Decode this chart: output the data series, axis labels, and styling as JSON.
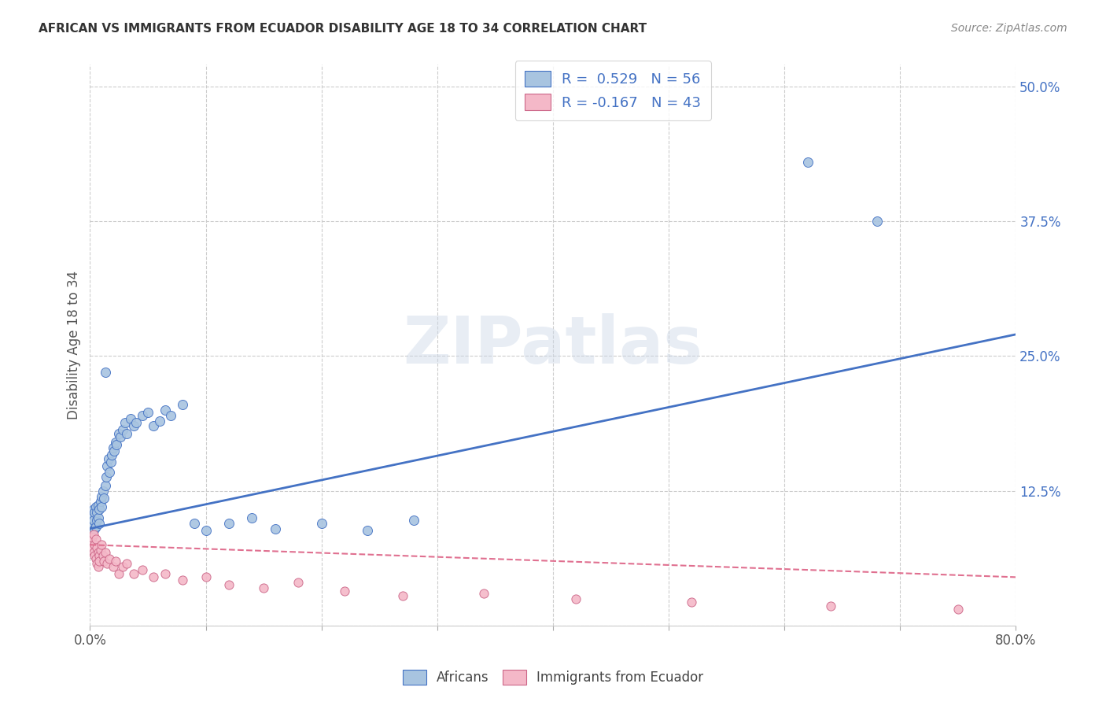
{
  "title": "AFRICAN VS IMMIGRANTS FROM ECUADOR DISABILITY AGE 18 TO 34 CORRELATION CHART",
  "source": "Source: ZipAtlas.com",
  "ylabel": "Disability Age 18 to 34",
  "xlim": [
    0.0,
    0.8
  ],
  "ylim": [
    0.0,
    0.52
  ],
  "xticks": [
    0.0,
    0.1,
    0.2,
    0.3,
    0.4,
    0.5,
    0.6,
    0.7,
    0.8
  ],
  "yticks": [
    0.0,
    0.125,
    0.25,
    0.375,
    0.5
  ],
  "yticklabels": [
    "",
    "12.5%",
    "25.0%",
    "37.5%",
    "50.0%"
  ],
  "blue_color": "#a8c4e0",
  "pink_color": "#f4b8c8",
  "blue_line_color": "#4472c4",
  "pink_line_color": "#e07090",
  "legend_blue_label": "R =  0.529   N = 56",
  "legend_pink_label": "R = -0.167   N = 43",
  "africans_label": "Africans",
  "ecuador_label": "Immigrants from Ecuador",
  "watermark": "ZIPatlas",
  "africans_x": [
    0.001,
    0.002,
    0.003,
    0.003,
    0.004,
    0.004,
    0.005,
    0.005,
    0.006,
    0.006,
    0.007,
    0.007,
    0.008,
    0.008,
    0.009,
    0.01,
    0.01,
    0.011,
    0.012,
    0.013,
    0.013,
    0.014,
    0.015,
    0.016,
    0.017,
    0.018,
    0.019,
    0.02,
    0.021,
    0.022,
    0.023,
    0.025,
    0.026,
    0.028,
    0.03,
    0.032,
    0.035,
    0.038,
    0.04,
    0.045,
    0.05,
    0.055,
    0.06,
    0.065,
    0.07,
    0.08,
    0.09,
    0.1,
    0.12,
    0.14,
    0.16,
    0.2,
    0.24,
    0.28,
    0.62,
    0.68
  ],
  "africans_y": [
    0.095,
    0.1,
    0.098,
    0.108,
    0.09,
    0.105,
    0.092,
    0.11,
    0.098,
    0.105,
    0.1,
    0.112,
    0.095,
    0.108,
    0.115,
    0.11,
    0.12,
    0.125,
    0.118,
    0.13,
    0.235,
    0.138,
    0.148,
    0.155,
    0.142,
    0.152,
    0.158,
    0.165,
    0.162,
    0.17,
    0.168,
    0.178,
    0.175,
    0.182,
    0.188,
    0.178,
    0.192,
    0.185,
    0.188,
    0.195,
    0.198,
    0.185,
    0.19,
    0.2,
    0.195,
    0.205,
    0.095,
    0.088,
    0.095,
    0.1,
    0.09,
    0.095,
    0.088,
    0.098,
    0.43,
    0.375
  ],
  "ecuador_x": [
    0.001,
    0.002,
    0.002,
    0.003,
    0.003,
    0.004,
    0.004,
    0.005,
    0.005,
    0.006,
    0.006,
    0.007,
    0.007,
    0.008,
    0.008,
    0.009,
    0.01,
    0.011,
    0.012,
    0.013,
    0.015,
    0.017,
    0.02,
    0.022,
    0.025,
    0.028,
    0.032,
    0.038,
    0.045,
    0.055,
    0.065,
    0.08,
    0.1,
    0.12,
    0.15,
    0.18,
    0.22,
    0.27,
    0.34,
    0.42,
    0.52,
    0.64,
    0.75
  ],
  "ecuador_y": [
    0.078,
    0.082,
    0.072,
    0.085,
    0.068,
    0.075,
    0.065,
    0.08,
    0.062,
    0.072,
    0.058,
    0.068,
    0.055,
    0.065,
    0.06,
    0.07,
    0.075,
    0.065,
    0.06,
    0.068,
    0.058,
    0.062,
    0.055,
    0.06,
    0.048,
    0.055,
    0.058,
    0.048,
    0.052,
    0.045,
    0.048,
    0.042,
    0.045,
    0.038,
    0.035,
    0.04,
    0.032,
    0.028,
    0.03,
    0.025,
    0.022,
    0.018,
    0.015
  ],
  "blue_line_x": [
    0.0,
    0.8
  ],
  "blue_line_y": [
    0.09,
    0.27
  ],
  "pink_line_x": [
    0.0,
    0.8
  ],
  "pink_line_y": [
    0.075,
    0.045
  ]
}
